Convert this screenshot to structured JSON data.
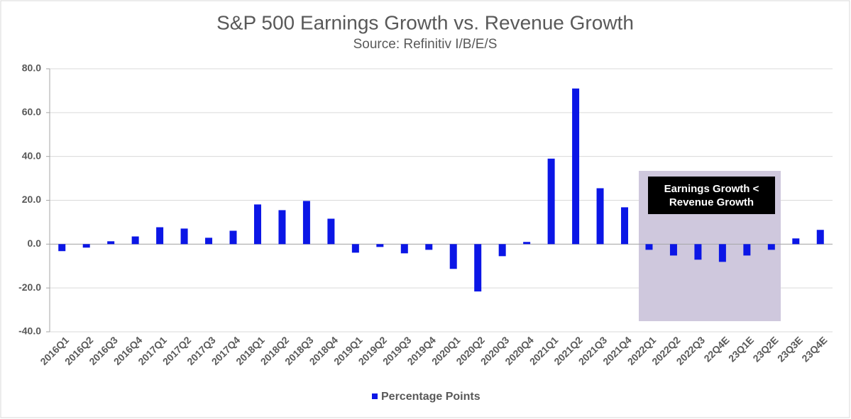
{
  "chart_data": {
    "type": "bar",
    "title": "S&P 500 Earnings Growth vs. Revenue Growth",
    "subtitle": "Source: Refinitiv I/B/E/S",
    "annotation": "Earnings Growth < Revenue Growth",
    "categories": [
      "2016Q1",
      "2016Q2",
      "2016Q3",
      "2016Q4",
      "2017Q1",
      "2017Q2",
      "2017Q3",
      "2017Q4",
      "2018Q1",
      "2018Q2",
      "2018Q3",
      "2018Q4",
      "2019Q1",
      "2019Q2",
      "2019Q3",
      "2019Q4",
      "2020Q1",
      "2020Q2",
      "2020Q3",
      "2020Q4",
      "2021Q1",
      "2021Q2",
      "2021Q3",
      "2021Q4",
      "2022Q1",
      "2022Q2",
      "2022Q3",
      "22Q4E",
      "23Q1E",
      "23Q2E",
      "23Q3E",
      "23Q4E"
    ],
    "series": [
      {
        "name": "Percentage Points",
        "color": "#0b16e6",
        "values": [
          -3.2,
          -1.6,
          1.3,
          3.5,
          7.7,
          7.1,
          2.9,
          6.1,
          18.1,
          15.5,
          19.7,
          11.6,
          -3.9,
          -1.3,
          -4.2,
          -2.6,
          -11.3,
          -21.6,
          -5.5,
          1.0,
          39.0,
          71.0,
          25.5,
          16.8,
          -2.6,
          -5.2,
          -7.1,
          -8.1,
          -5.2,
          -2.6,
          2.6,
          6.5
        ]
      }
    ],
    "ylim": [
      -40,
      80
    ],
    "yticks": [
      {
        "value": -40,
        "label": "-40.0"
      },
      {
        "value": -20,
        "label": "-20.0"
      },
      {
        "value": 0,
        "label": "0.0"
      },
      {
        "value": 20,
        "label": "20.0"
      },
      {
        "value": 40,
        "label": "40.0"
      },
      {
        "value": 60,
        "label": "60.0"
      },
      {
        "value": 80,
        "label": "80.0"
      }
    ],
    "grid": true
  }
}
